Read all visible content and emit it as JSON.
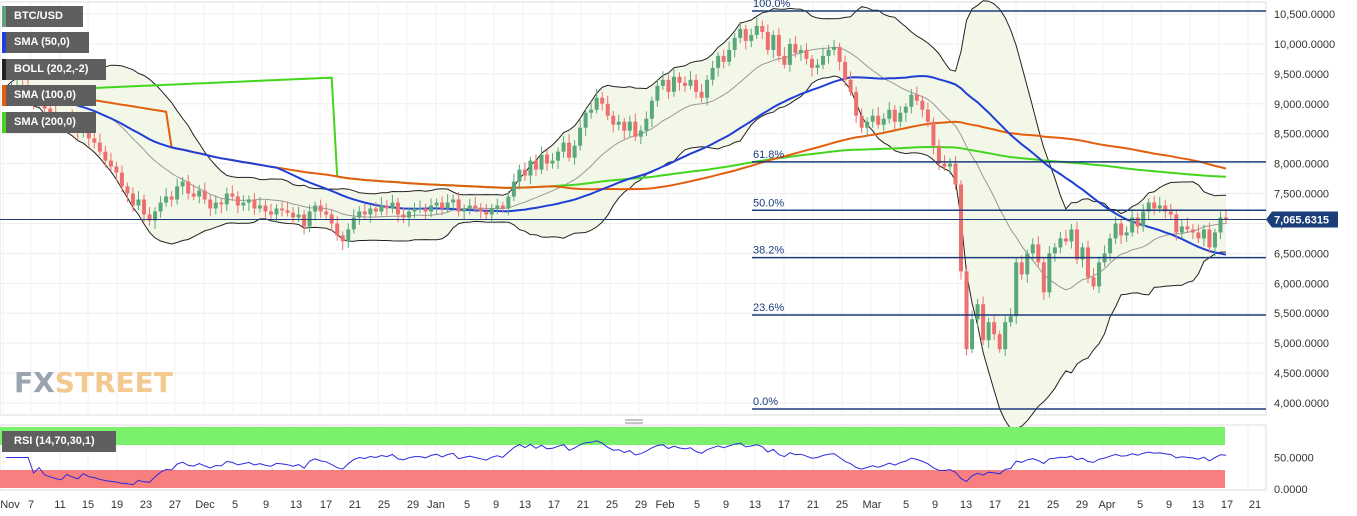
{
  "legend": {
    "symbol": "BTC/USD",
    "sma50": "SMA (50,0)",
    "boll": "BOLL (20,2,-2)",
    "sma100": "SMA (100,0)",
    "sma200": "SMA (200,0)",
    "rsi": "RSI (14,70,30,1)"
  },
  "watermark": {
    "fx": "FX",
    "street": "STREET"
  },
  "price_tag": "7,065.6315",
  "colors": {
    "up": "#5aa77a",
    "down": "#ee6f6f",
    "sma50": "#1f3fd6",
    "sma50_light": "#7d93e8",
    "sma100": "#e35e0e",
    "sma200": "#42d61d",
    "boll": "#222222",
    "boll_fill": "#f3f7e8",
    "fib": "#1b3d7a",
    "rsi_line": "#2d2ae0",
    "rsi_over": "#7af06c",
    "rsi_under": "#f77f7f",
    "swatch_btc": "#5fa380",
    "swatch_sma50": "#1f3fd6",
    "swatch_boll": "#222222",
    "swatch_sma100": "#e35e0e",
    "swatch_sma200": "#42d61d"
  },
  "chart_data": [
    {
      "type": "candlestick",
      "title": "BTC/USD",
      "ylim": [
        3800,
        10700
      ],
      "y_ticks": [
        "10,500.0000",
        "10,000.0000",
        "9,500.0000",
        "9,000.0000",
        "8,500.0000",
        "8,000.0000",
        "7,500.0000",
        "7,000.0000",
        "6,500.0000",
        "6,000.0000",
        "5,500.0000",
        "5,000.0000",
        "4,500.0000",
        "4,000.0000"
      ],
      "x_ticks": [
        "Nov",
        "7",
        "11",
        "15",
        "19",
        "23",
        "27",
        "Dec",
        "5",
        "9",
        "13",
        "17",
        "21",
        "25",
        "29",
        "Jan",
        "5",
        "9",
        "13",
        "17",
        "21",
        "25",
        "29",
        "Feb",
        "5",
        "9",
        "13",
        "17",
        "21",
        "25",
        "Mar",
        "5",
        "9",
        "13",
        "17",
        "21",
        "25",
        "29",
        "Apr",
        "5",
        "9",
        "13",
        "17",
        "21"
      ],
      "fib_levels": [
        {
          "label": "100.0%",
          "value": 10550
        },
        {
          "label": "61.8%",
          "value": 8030
        },
        {
          "label": "50.0%",
          "value": 7220
        },
        {
          "label": "38.2%",
          "value": 6430
        },
        {
          "label": "23.6%",
          "value": 5470
        },
        {
          "label": "0.0%",
          "value": 3900
        }
      ],
      "last_price": 7065.6315,
      "candles_close": [
        9200,
        9260,
        9310,
        9280,
        9180,
        9050,
        9090,
        8920,
        8850,
        8770,
        8700,
        8760,
        8650,
        8520,
        8600,
        8420,
        8350,
        8200,
        8050,
        7950,
        7850,
        7620,
        7500,
        7300,
        7400,
        7150,
        7050,
        7200,
        7350,
        7450,
        7400,
        7620,
        7700,
        7500,
        7450,
        7550,
        7400,
        7250,
        7350,
        7320,
        7500,
        7450,
        7300,
        7350,
        7400,
        7250,
        7300,
        7200,
        7150,
        7250,
        7220,
        7180,
        7100,
        7150,
        6950,
        7200,
        7300,
        7200,
        7150,
        7000,
        6800,
        6700,
        6900,
        7100,
        7200,
        7150,
        7250,
        7200,
        7300,
        7250,
        7350,
        7150,
        7100,
        7200,
        7250,
        7250,
        7200,
        7300,
        7350,
        7250,
        7350,
        7400,
        7200,
        7250,
        7300,
        7250,
        7200,
        7150,
        7250,
        7300,
        7250,
        7450,
        7700,
        7900,
        7800,
        8050,
        7900,
        8150,
        8000,
        8050,
        8200,
        8350,
        8100,
        8300,
        8600,
        8850,
        8900,
        9100,
        9000,
        8800,
        8650,
        8700,
        8550,
        8700,
        8450,
        8550,
        8750,
        9050,
        9300,
        9400,
        9200,
        9450,
        9350,
        9300,
        9400,
        9200,
        9100,
        9400,
        9600,
        9800,
        9700,
        9900,
        10100,
        10250,
        10050,
        10150,
        10300,
        10200,
        9900,
        10150,
        9800,
        9650,
        10000,
        9850,
        9900,
        9750,
        9600,
        9650,
        9800,
        9900,
        9950,
        9700,
        9400,
        9200,
        8800,
        8600,
        8700,
        8800,
        8650,
        8750,
        8900,
        8700,
        8850,
        8950,
        9150,
        9050,
        8900,
        8700,
        8300,
        8000,
        7950,
        8000,
        7650,
        6200,
        4900,
        5400,
        5650,
        5050,
        5350,
        5150,
        4900,
        5350,
        5450,
        6350,
        6150,
        6500,
        6650,
        6350,
        5850,
        6500,
        6600,
        6750,
        6700,
        6900,
        6400,
        6600,
        6100,
        5950,
        6350,
        6500,
        6750,
        7000,
        6800,
        6850,
        7100,
        6950,
        7200,
        7350,
        7250,
        7300,
        7200,
        7150,
        6850,
        6950,
        6900,
        6850,
        6750,
        6900,
        6600,
        6850,
        7100,
        7065
      ]
    },
    {
      "type": "line",
      "title": "RSI (14,70,30,1)",
      "ylim": [
        0,
        100
      ],
      "y_ticks": [
        "50.0000",
        "0.0000"
      ],
      "overbought": 70,
      "oversold": 30
    }
  ]
}
